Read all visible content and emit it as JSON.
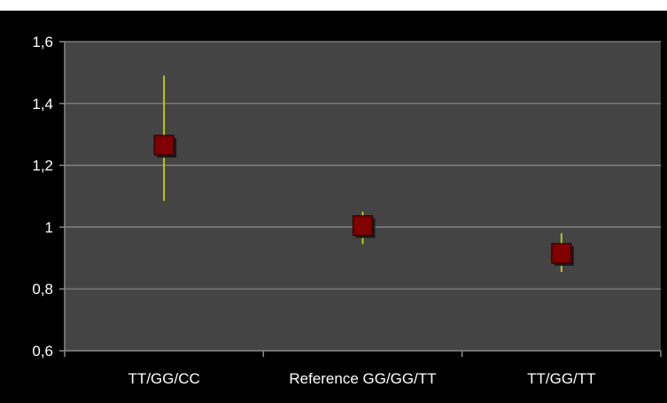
{
  "chart_data": {
    "type": "scatter",
    "categories": [
      "TT/GG/CC",
      "Reference GG/GG/TT",
      "TT/GG/TT"
    ],
    "series": [
      {
        "values": [
          1.265,
          1.005,
          0.915
        ],
        "error_low": [
          1.085,
          0.945,
          0.855
        ],
        "error_high": [
          1.49,
          1.05,
          0.98
        ]
      }
    ],
    "ylim": [
      0.6,
      1.6
    ],
    "ytick_labels": [
      "0,6",
      "0,8",
      "1",
      "1,2",
      "1,4",
      "1,6"
    ],
    "ytick_values": [
      0.6,
      0.8,
      1.0,
      1.2,
      1.4,
      1.6
    ],
    "grid": true,
    "title": "",
    "xlabel": "",
    "ylabel": "",
    "colors": {
      "background": "#000000",
      "plot_area": "#444444",
      "gridline": "#8a8a8a",
      "marker": "#800000",
      "marker_shadow": "#1a1a1a",
      "error_bar": "#c8d400",
      "text": "#ffffff",
      "axis": "#8a8a8a"
    }
  }
}
